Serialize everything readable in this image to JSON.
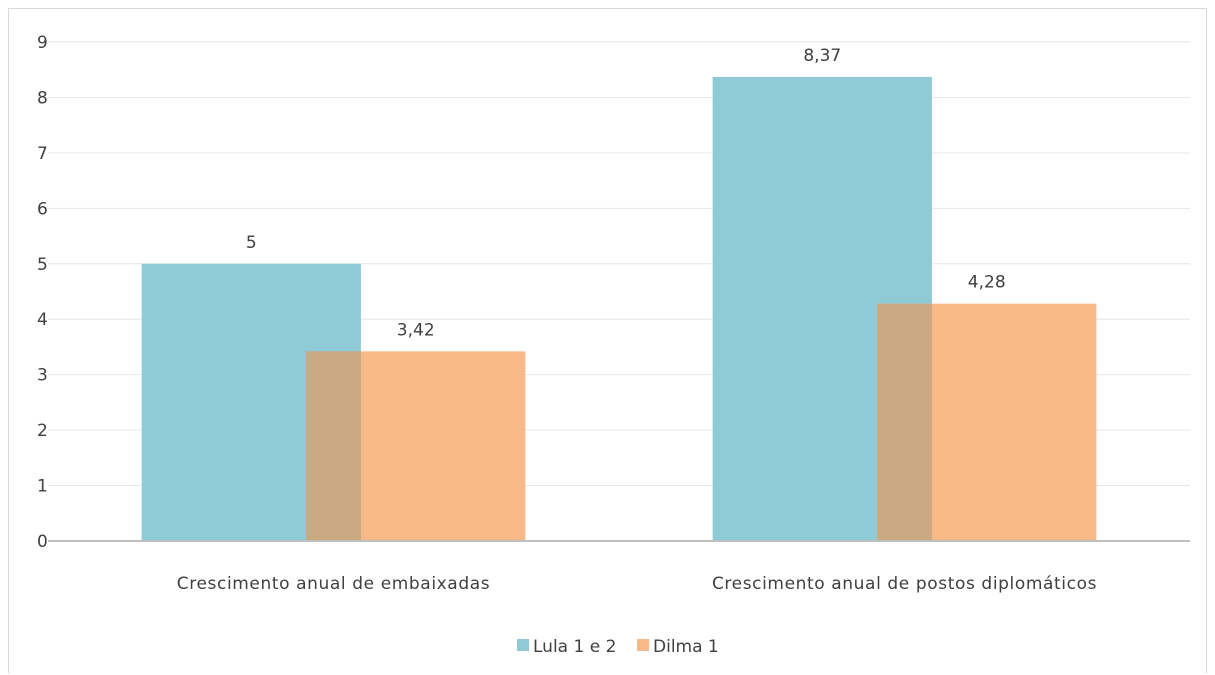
{
  "chart_data": {
    "type": "bar",
    "categories": [
      "Crescimento anual de embaixadas",
      "Crescimento anual de postos diplomáticos"
    ],
    "series": [
      {
        "name": "Lula 1 e 2",
        "values": [
          5,
          8.37
        ],
        "labels": [
          "5",
          "8,37"
        ],
        "color": "#8fcad7"
      },
      {
        "name": "Dilma 1",
        "values": [
          3.42,
          4.28
        ],
        "labels": [
          "3,42",
          "4,28"
        ],
        "color": "#f7b988"
      }
    ],
    "overlap_color": "#c9a982",
    "ylim": [
      0,
      9
    ],
    "yticks": [
      "0",
      "1",
      "2",
      "3",
      "4",
      "5",
      "6",
      "7",
      "8",
      "9"
    ],
    "grid": true,
    "legend_position": "bottom",
    "title": "",
    "xlabel": "",
    "ylabel": ""
  }
}
